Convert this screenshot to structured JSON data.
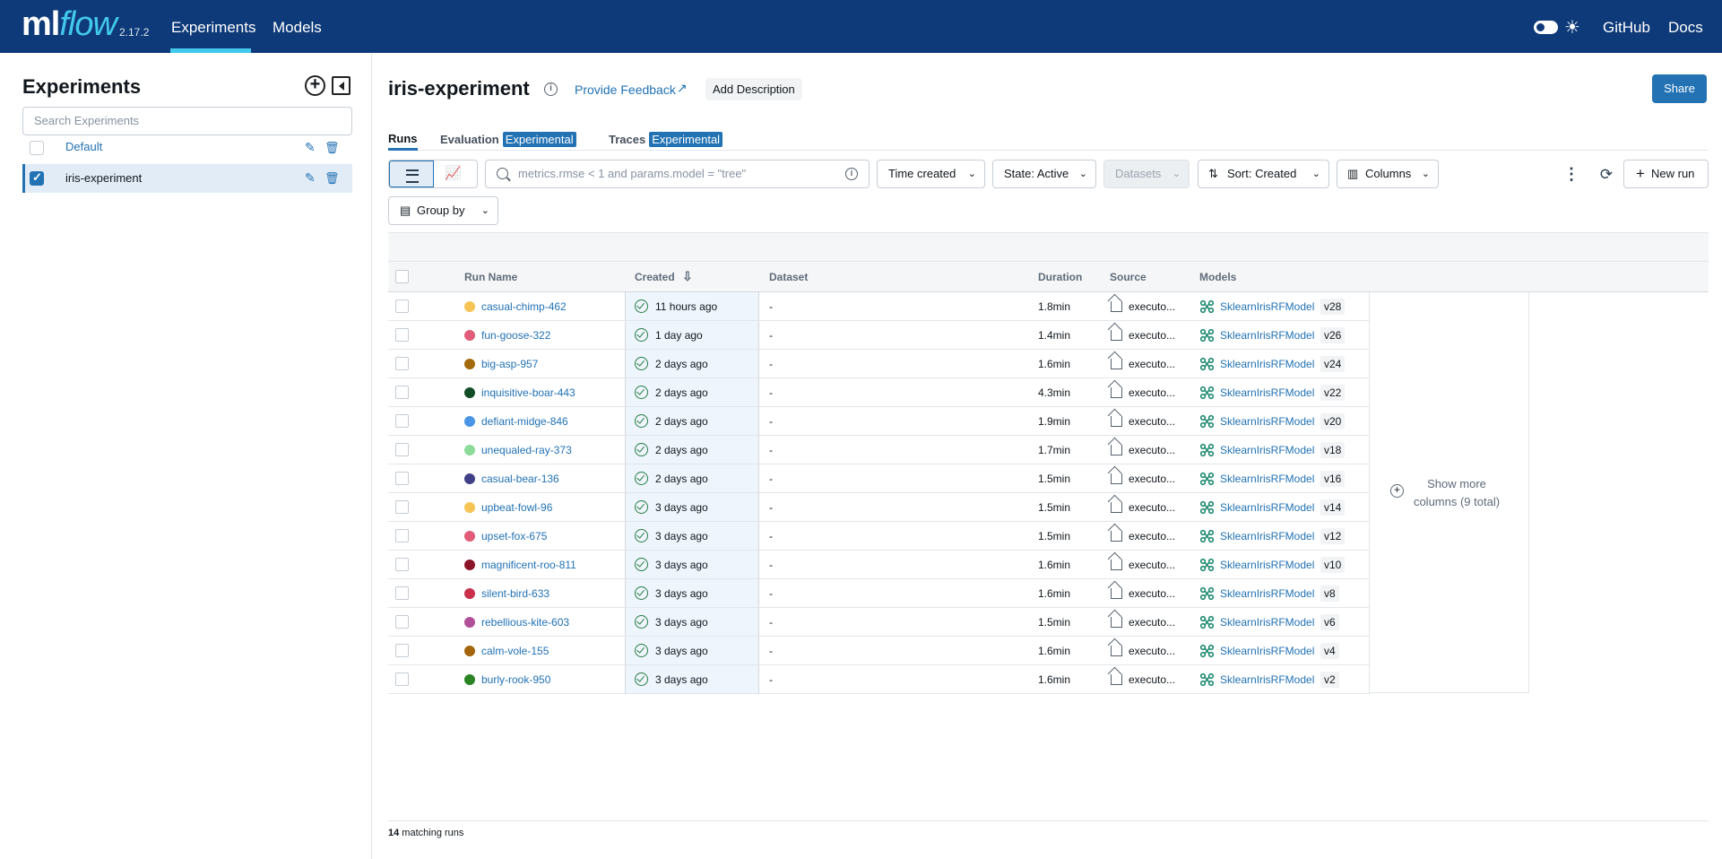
{
  "topbar": {
    "logo_ml": "ml",
    "logo_flow": "flow",
    "version": "2.17.2",
    "nav": [
      "Experiments",
      "Models"
    ],
    "github": "GitHub",
    "docs": "Docs",
    "accent": "#43c9ed",
    "bg": "#0e3a79"
  },
  "sidebar": {
    "title": "Experiments",
    "search_placeholder": "Search Experiments",
    "items": [
      {
        "name": "Default",
        "checked": false
      },
      {
        "name": "iris-experiment",
        "checked": true
      }
    ]
  },
  "main": {
    "title": "iris-experiment",
    "feedback": "Provide Feedback",
    "add_description": "Add Description",
    "share": "Share",
    "tabs": {
      "runs": "Runs",
      "evaluation": "Evaluation",
      "traces": "Traces",
      "badge": "Experimental"
    },
    "toolbar": {
      "filter_placeholder": "metrics.rmse < 1 and params.model = \"tree\"",
      "time_created": "Time created",
      "state": "State: Active",
      "datasets": "Datasets",
      "sort": "Sort: Created",
      "columns": "Columns",
      "new_run": "New run",
      "group_by": "Group by"
    },
    "columns": [
      "Run Name",
      "Created",
      "Dataset",
      "Duration",
      "Source",
      "Models"
    ],
    "runs": [
      {
        "name": "casual-chimp-462",
        "color": "#f5c454",
        "created": "11 hours ago",
        "dataset": "-",
        "duration": "1.8min",
        "source": "executo...",
        "model": "SklearnIrisRFModel",
        "version": "v28"
      },
      {
        "name": "fun-goose-322",
        "color": "#e05c78",
        "created": "1 day ago",
        "dataset": "-",
        "duration": "1.4min",
        "source": "executo...",
        "model": "SklearnIrisRFModel",
        "version": "v26"
      },
      {
        "name": "big-asp-957",
        "color": "#a36a0c",
        "created": "2 days ago",
        "dataset": "-",
        "duration": "1.6min",
        "source": "executo...",
        "model": "SklearnIrisRFModel",
        "version": "v24"
      },
      {
        "name": "inquisitive-boar-443",
        "color": "#124d27",
        "created": "2 days ago",
        "dataset": "-",
        "duration": "4.3min",
        "source": "executo...",
        "model": "SklearnIrisRFModel",
        "version": "v22"
      },
      {
        "name": "defiant-midge-846",
        "color": "#4a94e6",
        "created": "2 days ago",
        "dataset": "-",
        "duration": "1.9min",
        "source": "executo...",
        "model": "SklearnIrisRFModel",
        "version": "v20"
      },
      {
        "name": "unequaled-ray-373",
        "color": "#8cdb9a",
        "created": "2 days ago",
        "dataset": "-",
        "duration": "1.7min",
        "source": "executo...",
        "model": "SklearnIrisRFModel",
        "version": "v18"
      },
      {
        "name": "casual-bear-136",
        "color": "#404088",
        "created": "2 days ago",
        "dataset": "-",
        "duration": "1.5min",
        "source": "executo...",
        "model": "SklearnIrisRFModel",
        "version": "v16"
      },
      {
        "name": "upbeat-fowl-96",
        "color": "#f5c454",
        "created": "3 days ago",
        "dataset": "-",
        "duration": "1.5min",
        "source": "executo...",
        "model": "SklearnIrisRFModel",
        "version": "v14"
      },
      {
        "name": "upset-fox-675",
        "color": "#e05c78",
        "created": "3 days ago",
        "dataset": "-",
        "duration": "1.5min",
        "source": "executo...",
        "model": "SklearnIrisRFModel",
        "version": "v12"
      },
      {
        "name": "magnificent-roo-811",
        "color": "#8c1428",
        "created": "3 days ago",
        "dataset": "-",
        "duration": "1.6min",
        "source": "executo...",
        "model": "SklearnIrisRFModel",
        "version": "v10"
      },
      {
        "name": "silent-bird-633",
        "color": "#c8304c",
        "created": "3 days ago",
        "dataset": "-",
        "duration": "1.6min",
        "source": "executo...",
        "model": "SklearnIrisRFModel",
        "version": "v8"
      },
      {
        "name": "rebellious-kite-603",
        "color": "#b05098",
        "created": "3 days ago",
        "dataset": "-",
        "duration": "1.5min",
        "source": "executo...",
        "model": "SklearnIrisRFModel",
        "version": "v6"
      },
      {
        "name": "calm-vole-155",
        "color": "#a3640c",
        "created": "3 days ago",
        "dataset": "-",
        "duration": "1.6min",
        "source": "executo...",
        "model": "SklearnIrisRFModel",
        "version": "v4"
      },
      {
        "name": "burly-rook-950",
        "color": "#2a8424",
        "created": "3 days ago",
        "dataset": "-",
        "duration": "1.6min",
        "source": "executo...",
        "model": "SklearnIrisRFModel",
        "version": "v2"
      }
    ],
    "show_more_line1": "Show more",
    "show_more_line2": "columns (9 total)",
    "footer_count": "14",
    "footer_text": " matching runs"
  }
}
